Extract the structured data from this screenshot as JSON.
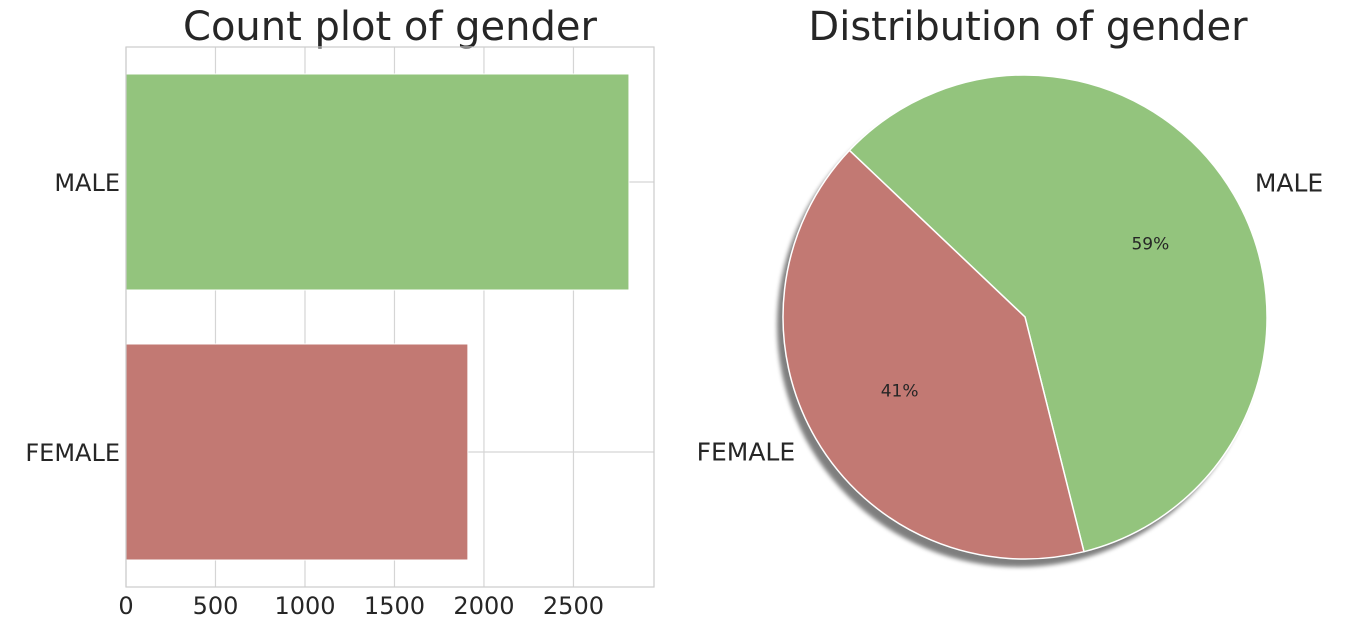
{
  "chart_data": [
    {
      "type": "bar",
      "orientation": "horizontal",
      "title": "Count plot of gender",
      "categories": [
        "MALE",
        "FEMALE"
      ],
      "values": [
        2810,
        1910
      ],
      "colors": [
        "#93c47d",
        "#c27973"
      ],
      "xticks": [
        0,
        500,
        1000,
        1500,
        2000,
        2500
      ],
      "xlim": [
        0,
        2950
      ],
      "grid": true
    },
    {
      "type": "pie",
      "title": "Distribution of gender",
      "labels": [
        "MALE",
        "FEMALE"
      ],
      "values": [
        59,
        41
      ],
      "pct_labels": [
        "59%",
        "41%"
      ],
      "colors": [
        "#93c47d",
        "#c27973"
      ],
      "shadow": true
    }
  ]
}
